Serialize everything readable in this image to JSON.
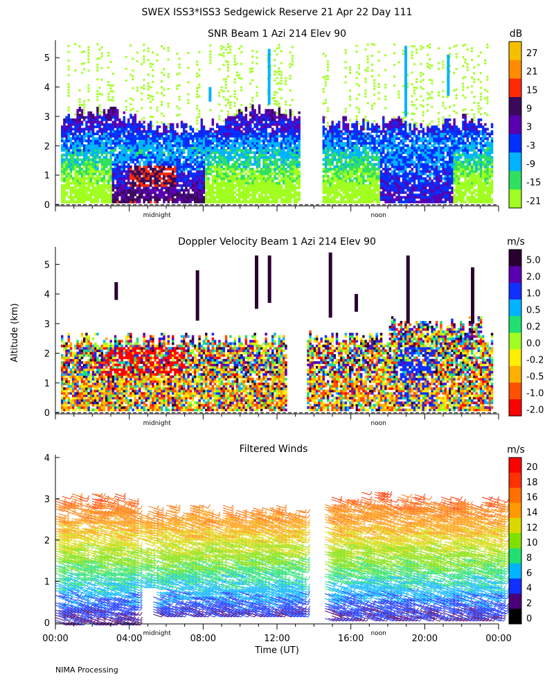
{
  "header": {
    "title": "SWEX ISS3*ISS3 Sedgewick Reserve  21 Apr 22 Day 111"
  },
  "footer": {
    "note": "NIMA Processing"
  },
  "axes": {
    "ylabel": "Altitude (km)",
    "xlabel": "Time (UT)"
  },
  "chart_data": [
    {
      "type": "heatmap",
      "title": "SNR Beam 1 Azi 214 Elev 90",
      "ylim": [
        0,
        5.5
      ],
      "yticks": [
        "0",
        "1",
        "2",
        "3",
        "4",
        "5"
      ],
      "xmarkers": [
        {
          "label": "midnight",
          "x": 5.5
        },
        {
          "label": "noon",
          "x": 17.5
        }
      ],
      "xlim": [
        0,
        24
      ],
      "colorbar": {
        "unit": "dB",
        "labels": [
          "27",
          "21",
          "15",
          "9",
          "3",
          "-3",
          "-9",
          "-15",
          "-21"
        ],
        "colors": [
          "#f5c000",
          "#ff8c00",
          "#ff2a00",
          "#3a0a5a",
          "#5a00b0",
          "#0030ff",
          "#00b4ff",
          "#30e060",
          "#a0ff20"
        ]
      }
    },
    {
      "type": "heatmap",
      "title": "Doppler Velocity Beam 1 Azi 214 Elev 90",
      "ylim": [
        0,
        5.5
      ],
      "yticks": [
        "0",
        "1",
        "2",
        "3",
        "4",
        "5"
      ],
      "xmarkers": [
        {
          "label": "midnight",
          "x": 5.5
        },
        {
          "label": "noon",
          "x": 17.5
        }
      ],
      "xlim": [
        0,
        24
      ],
      "colorbar": {
        "unit": "m/s",
        "labels": [
          "5.0",
          "2.0",
          "1.0",
          "0.5",
          "0.2",
          "0.0",
          "-0.2",
          "-0.5",
          "-1.0",
          "-2.0"
        ],
        "colors": [
          "#2a0030",
          "#5a00b0",
          "#1030ff",
          "#00b4ff",
          "#20e070",
          "#a0ff20",
          "#ffee00",
          "#ffb000",
          "#ff5000",
          "#ff0000"
        ]
      }
    },
    {
      "type": "scatter",
      "title": "Filtered Winds",
      "ylim": [
        0,
        4
      ],
      "yticks": [
        "0",
        "1",
        "2",
        "3",
        "4"
      ],
      "xlim": [
        0,
        24
      ],
      "xticks": [
        "00:00",
        "04:00",
        "08:00",
        "12:00",
        "16:00",
        "20:00",
        "00:00"
      ],
      "xmarkers": [
        {
          "label": "midnight",
          "x": 5.5
        },
        {
          "label": "noon",
          "x": 17.5
        }
      ],
      "colorbar": {
        "unit": "m/s",
        "labels": [
          "20",
          "18",
          "16",
          "14",
          "12",
          "10",
          "8",
          "6",
          "4",
          "2",
          "0"
        ],
        "colors": [
          "#ff0000",
          "#ff3000",
          "#ff7000",
          "#ff9a00",
          "#d8d800",
          "#80e000",
          "#20e070",
          "#00b4ff",
          "#1030ff",
          "#4a007a",
          "#000000"
        ]
      }
    }
  ]
}
